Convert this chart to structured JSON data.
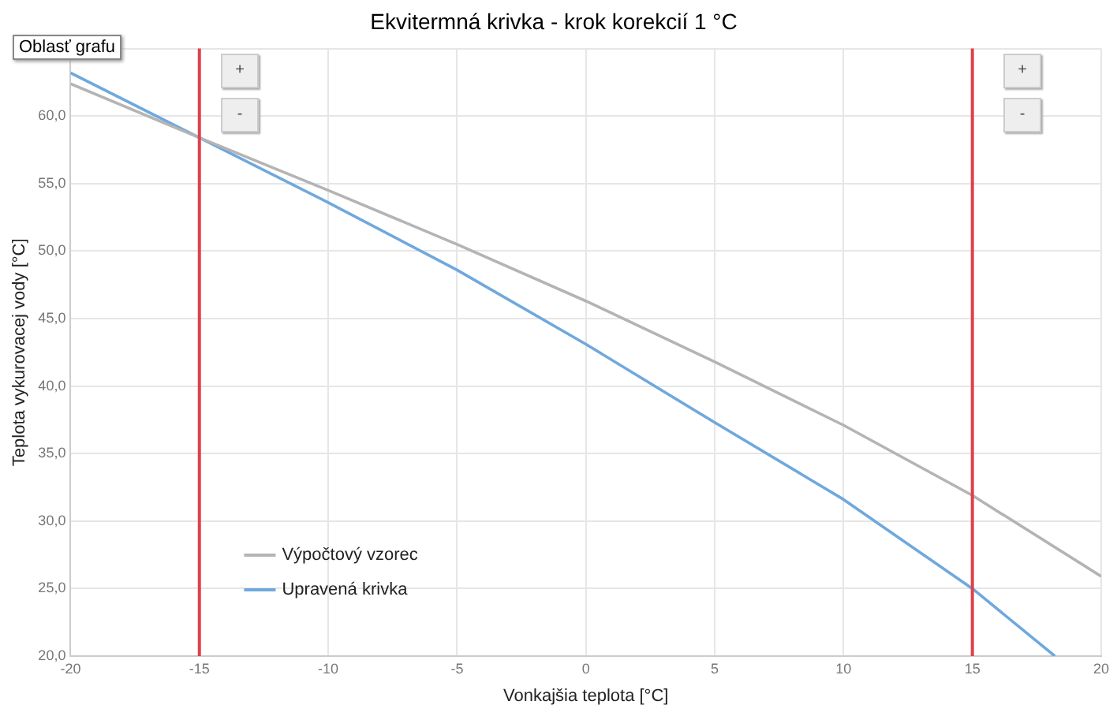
{
  "chart_data": {
    "type": "line",
    "title": "Ekvitermná krivka - krok korekcií 1 °C",
    "xlabel": "Vonkajšia teplota [°C]",
    "ylabel": "Teplota vykurovacej vody [°C]",
    "x": [
      -20,
      -15,
      -10,
      -5,
      0,
      5,
      10,
      15,
      20
    ],
    "series": [
      {
        "name": "Výpočtový vzorec",
        "color": "#b4b4b4",
        "values": [
          62.4,
          58.4,
          54.5,
          50.5,
          46.3,
          41.8,
          37.1,
          31.9,
          25.9
        ]
      },
      {
        "name": "Upravená krivka",
        "color": "#6fa8dc",
        "x": [
          -20,
          -15,
          -10,
          -5,
          0,
          5,
          10,
          15,
          18.2
        ],
        "values": [
          63.2,
          58.4,
          53.6,
          48.6,
          43.1,
          37.3,
          31.6,
          25.0,
          20.0
        ]
      }
    ],
    "xlim": [
      -20,
      20
    ],
    "xticks": [
      -20,
      -15,
      -10,
      -5,
      0,
      5,
      10,
      15,
      20
    ],
    "ylim": [
      20,
      65
    ],
    "yticks": [
      {
        "value": 20,
        "label": "20,0"
      },
      {
        "value": 25,
        "label": "25,0"
      },
      {
        "value": 30,
        "label": "30,0"
      },
      {
        "value": 35,
        "label": "35,0"
      },
      {
        "value": 40,
        "label": "40,0"
      },
      {
        "value": 45,
        "label": "45,0"
      },
      {
        "value": 50,
        "label": "50,0"
      },
      {
        "value": 55,
        "label": "55,0"
      },
      {
        "value": 60,
        "label": "60,0"
      },
      {
        "value": 65,
        "label": null
      }
    ],
    "ref_lines": [
      {
        "axis": "x",
        "value": -15,
        "color": "#e0404e"
      },
      {
        "axis": "x",
        "value": 15,
        "color": "#e0404e"
      }
    ],
    "annotations": [
      "Oblasť grafu",
      "+",
      "-",
      "+",
      "-"
    ],
    "grid": true,
    "legend": "bottom left",
    "marker": "none",
    "line_style": "solid"
  }
}
